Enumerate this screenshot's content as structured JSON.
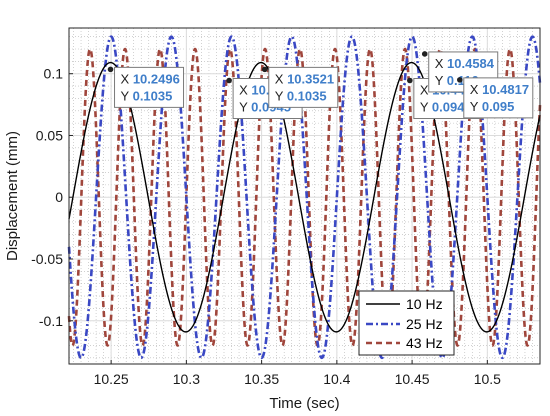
{
  "chart_data": {
    "type": "line",
    "xlabel": "Time (sec)",
    "ylabel": "Displacement (mm)",
    "xlim": [
      10.222,
      10.535
    ],
    "ylim": [
      -0.135,
      0.137
    ],
    "x_ticks": [
      10.25,
      10.3,
      10.35,
      10.4,
      10.45,
      10.5
    ],
    "x_tick_labels": [
      "10.25",
      "10.3",
      "10.35",
      "10.4",
      "10.45",
      "10.5"
    ],
    "y_ticks": [
      -0.1,
      -0.05,
      0,
      0.05,
      0.1
    ],
    "y_tick_labels": [
      "-0.1",
      "-0.05",
      "0",
      "0.05",
      "0.1"
    ],
    "grid": "major-and-minor",
    "legend_position": "bottom-right",
    "series": [
      {
        "name": "10 Hz",
        "color": "#000000",
        "style": "solid",
        "frequency_hz": 10,
        "amplitude": 0.109,
        "peak_time": 10.2496
      },
      {
        "name": "25 Hz",
        "color": "#3a48c4",
        "style": "dashdot",
        "frequency_hz": 25,
        "amplitude": 0.13,
        "peak_time": 10.25
      },
      {
        "name": "43 Hz",
        "color": "#a0463c",
        "style": "dashed",
        "frequency_hz": 43,
        "amplitude": 0.12,
        "peak_time": 10.236
      }
    ],
    "annotations": [
      {
        "x_label": "X",
        "x": "10.2496",
        "y_label": "Y",
        "y": "0.1035",
        "px": 10.2496,
        "py": 0.1035
      },
      {
        "x_label": "X",
        "x": "10.3284",
        "y_label": "Y",
        "y": "0.0945",
        "px": 10.3284,
        "py": 0.0945
      },
      {
        "x_label": "X",
        "x": "10.3521",
        "y_label": "Y",
        "y": "0.1035",
        "px": 10.3521,
        "py": 0.1035
      },
      {
        "x_label": "X",
        "x": "10.4485",
        "y_label": "Y",
        "y": "0.0945",
        "px": 10.4485,
        "py": 0.0945
      },
      {
        "x_label": "X",
        "x": "10.4584",
        "y_label": "Y",
        "y": "0.116",
        "px": 10.4584,
        "py": 0.116
      },
      {
        "x_label": "X",
        "x": "10.4817",
        "y_label": "Y",
        "y": "0.095",
        "px": 10.4817,
        "py": 0.095
      }
    ]
  }
}
